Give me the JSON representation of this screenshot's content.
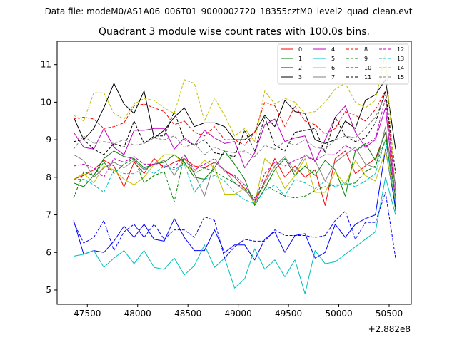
{
  "figure": {
    "suptitle": "Data file: modeM0/AS1A06_006T01_9000002720_18355cztM0_level2_quad_clean.evt",
    "title": "Quadrant 3 module wise count rates with 100.0s bins.",
    "offset_label": "+2.882e8"
  },
  "chart_data": {
    "type": "line",
    "title": "Quadrant 3 module wise count rates with 100.0s bins.",
    "xlabel": "",
    "ylabel": "",
    "x_offset": 288200000,
    "xlim": [
      47200,
      50720
    ],
    "ylim": [
      4.62,
      11.62
    ],
    "xticks": [
      47500,
      48000,
      48500,
      49000,
      49500,
      50000,
      50500
    ],
    "xtick_labels": [
      "47500",
      "48000",
      "48500",
      "49000",
      "49500",
      "50000",
      "50500"
    ],
    "yticks": [
      5,
      6,
      7,
      8,
      9,
      10,
      11
    ],
    "ytick_labels": [
      "5",
      "6",
      "7",
      "8",
      "9",
      "10",
      "11"
    ],
    "legend_location": "upper-right",
    "legend_columns": 4,
    "x": [
      47364,
      47464,
      47564,
      47664,
      47764,
      47864,
      47964,
      48064,
      48164,
      48264,
      48364,
      48464,
      48564,
      48664,
      48764,
      48864,
      48964,
      49064,
      49164,
      49264,
      49364,
      49464,
      49564,
      49664,
      49764,
      49864,
      49964,
      50064,
      50164,
      50264,
      50364,
      50464,
      50564
    ],
    "series": [
      {
        "name": "0",
        "color": "#ff0000",
        "dash": "solid",
        "values": [
          7.95,
          8.05,
          8.2,
          8.45,
          8.3,
          7.75,
          8.4,
          8.1,
          8.5,
          8.25,
          8.4,
          8.5,
          8.3,
          8.25,
          8.4,
          8.2,
          8.0,
          7.7,
          7.3,
          7.9,
          8.5,
          8.0,
          8.3,
          8.0,
          8.2,
          7.25,
          8.5,
          8.7,
          8.1,
          8.3,
          8.5,
          9.2,
          7.8
        ]
      },
      {
        "name": "1",
        "color": "#008000",
        "dash": "solid",
        "values": [
          7.85,
          7.75,
          8.05,
          8.5,
          8.7,
          8.55,
          8.5,
          8.25,
          8.35,
          8.4,
          8.6,
          8.4,
          8.0,
          7.95,
          8.25,
          8.7,
          8.35,
          7.95,
          7.25,
          7.7,
          8.2,
          8.5,
          8.05,
          8.3,
          8.05,
          8.45,
          8.2,
          7.5,
          8.7,
          8.9,
          8.45,
          9.2,
          7.1
        ]
      },
      {
        "name": "2",
        "color": "#0000ff",
        "dash": "solid",
        "values": [
          6.85,
          5.95,
          6.05,
          6.0,
          6.3,
          6.7,
          6.4,
          6.75,
          6.35,
          6.3,
          6.9,
          6.4,
          6.05,
          6.05,
          6.6,
          6.0,
          6.2,
          6.2,
          5.8,
          6.35,
          6.55,
          6.0,
          6.45,
          6.5,
          5.85,
          6.0,
          6.75,
          6.4,
          6.75,
          6.9,
          7.0,
          8.75,
          7.2
        ]
      },
      {
        "name": "3",
        "color": "#000000",
        "dash": "solid",
        "values": [
          9.6,
          9.0,
          9.3,
          9.85,
          10.5,
          9.95,
          9.7,
          10.3,
          9.05,
          9.25,
          9.6,
          9.85,
          9.35,
          9.45,
          9.45,
          9.35,
          9.0,
          9.0,
          9.2,
          9.65,
          9.35,
          10.05,
          9.75,
          9.7,
          9.0,
          8.9,
          9.0,
          9.5,
          9.3,
          10.05,
          10.2,
          10.6,
          8.75
        ]
      },
      {
        "name": "4",
        "color": "#c000c0",
        "dash": "solid",
        "values": [
          9.2,
          8.8,
          8.75,
          9.3,
          8.8,
          8.6,
          9.25,
          9.25,
          9.3,
          9.3,
          8.75,
          9.05,
          8.85,
          9.25,
          9.05,
          8.9,
          8.95,
          8.25,
          8.65,
          9.4,
          9.55,
          8.95,
          9.05,
          9.1,
          8.4,
          9.0,
          9.6,
          9.9,
          9.2,
          8.8,
          9.0,
          9.85,
          7.4
        ]
      },
      {
        "name": "5",
        "color": "#00bfbf",
        "dash": "solid",
        "values": [
          5.9,
          5.95,
          6.05,
          5.6,
          5.85,
          6.05,
          5.7,
          6.05,
          5.6,
          5.55,
          5.85,
          5.4,
          5.65,
          6.2,
          5.6,
          5.85,
          5.05,
          5.3,
          6.1,
          5.55,
          5.8,
          5.35,
          5.8,
          4.9,
          6.05,
          5.7,
          5.75,
          5.95,
          6.15,
          6.35,
          6.55,
          8.0,
          7.0
        ]
      },
      {
        "name": "6",
        "color": "#bfbf00",
        "dash": "solid",
        "values": [
          7.95,
          8.1,
          7.85,
          8.3,
          8.2,
          7.95,
          7.8,
          8.0,
          8.35,
          8.6,
          8.6,
          8.35,
          8.15,
          8.45,
          8.25,
          7.55,
          7.55,
          7.7,
          7.3,
          8.5,
          8.25,
          7.7,
          8.05,
          8.5,
          7.6,
          7.6,
          8.15,
          7.8,
          8.45,
          8.05,
          7.9,
          8.7,
          7.35
        ]
      },
      {
        "name": "7",
        "color": "#808080",
        "dash": "solid",
        "values": [
          8.6,
          8.45,
          8.0,
          8.25,
          8.4,
          8.25,
          8.45,
          8.2,
          8.35,
          8.45,
          8.05,
          8.5,
          8.1,
          7.5,
          8.4,
          8.2,
          7.85,
          7.65,
          7.4,
          7.85,
          8.3,
          8.55,
          8.15,
          8.6,
          8.45,
          7.9,
          8.4,
          8.6,
          8.8,
          8.35,
          8.25,
          9.35,
          7.4
        ]
      },
      {
        "name": "8",
        "color": "#ff0000",
        "dash": "dashed",
        "values": [
          9.55,
          9.6,
          9.55,
          9.3,
          9.35,
          9.45,
          9.9,
          9.95,
          9.85,
          9.75,
          9.4,
          9.5,
          9.2,
          9.1,
          9.35,
          9.0,
          9.0,
          8.85,
          9.2,
          10.0,
          9.9,
          9.35,
          9.9,
          9.5,
          9.4,
          9.15,
          9.3,
          9.75,
          9.65,
          9.5,
          9.8,
          10.3,
          7.7
        ]
      },
      {
        "name": "9",
        "color": "#008000",
        "dash": "dashed",
        "values": [
          7.45,
          8.15,
          8.05,
          8.4,
          8.1,
          8.35,
          8.5,
          7.85,
          8.05,
          8.15,
          7.35,
          8.6,
          8.1,
          8.25,
          8.15,
          8.0,
          7.85,
          7.7,
          7.45,
          7.8,
          7.65,
          7.5,
          7.45,
          7.5,
          7.65,
          7.75,
          7.8,
          7.8,
          7.85,
          8.15,
          8.3,
          9.0,
          7.5
        ]
      },
      {
        "name": "10",
        "color": "#0000ff",
        "dash": "dashed",
        "values": [
          6.8,
          6.25,
          6.4,
          6.85,
          6.05,
          6.55,
          6.75,
          6.4,
          6.75,
          6.35,
          6.6,
          6.6,
          6.4,
          6.95,
          6.85,
          5.85,
          6.15,
          6.35,
          6.3,
          6.3,
          6.6,
          6.45,
          6.45,
          6.45,
          6.4,
          6.45,
          6.85,
          7.1,
          6.35,
          6.8,
          6.8,
          7.6,
          5.85
        ]
      },
      {
        "name": "11",
        "color": "#000000",
        "dash": "dashed",
        "values": [
          8.95,
          9.0,
          8.75,
          8.6,
          8.9,
          8.8,
          9.5,
          8.9,
          9.1,
          9.1,
          9.75,
          9.0,
          8.85,
          9.0,
          8.65,
          8.6,
          8.55,
          9.25,
          8.7,
          9.6,
          8.85,
          8.7,
          9.2,
          9.25,
          9.3,
          8.65,
          9.6,
          9.1,
          8.95,
          9.05,
          9.45,
          10.3,
          8.1
        ]
      },
      {
        "name": "12",
        "color": "#c000c0",
        "dash": "dashed",
        "values": [
          8.3,
          8.35,
          8.25,
          8.0,
          8.5,
          8.4,
          8.55,
          8.35,
          8.35,
          8.3,
          8.25,
          8.6,
          8.2,
          8.35,
          8.5,
          8.15,
          8.05,
          7.8,
          7.35,
          8.1,
          8.4,
          8.3,
          8.45,
          8.55,
          8.45,
          8.6,
          8.6,
          8.85,
          8.7,
          8.85,
          9.05,
          10.1,
          7.6
        ]
      },
      {
        "name": "13",
        "color": "#00bfbf",
        "dash": "dashed",
        "values": [
          7.95,
          7.95,
          7.8,
          7.6,
          8.2,
          8.1,
          8.1,
          8.25,
          8.1,
          8.3,
          8.2,
          8.35,
          7.6,
          7.95,
          8.05,
          7.9,
          7.6,
          7.4,
          7.3,
          7.65,
          7.8,
          7.5,
          7.95,
          7.85,
          7.7,
          7.9,
          7.75,
          7.85,
          7.75,
          7.9,
          8.1,
          9.0,
          7.3
        ]
      },
      {
        "name": "14",
        "color": "#bfbf00",
        "dash": "dashed",
        "values": [
          9.65,
          9.5,
          10.25,
          10.25,
          9.7,
          9.55,
          9.95,
          10.1,
          10.05,
          9.85,
          9.7,
          10.6,
          10.5,
          9.5,
          10.1,
          9.65,
          9.1,
          9.3,
          8.95,
          10.3,
          9.95,
          10.1,
          10.0,
          9.7,
          9.75,
          10.0,
          10.35,
          10.5,
          10.0,
          9.85,
          10.05,
          11.3,
          7.55
        ]
      },
      {
        "name": "15",
        "color": "#808080",
        "dash": "dashed",
        "values": [
          8.75,
          9.1,
          8.9,
          8.95,
          8.9,
          9.0,
          8.85,
          8.9,
          9.05,
          9.0,
          9.1,
          8.8,
          8.9,
          8.6,
          8.8,
          8.7,
          8.65,
          8.7,
          8.55,
          8.85,
          8.75,
          8.95,
          8.85,
          9.0,
          8.8,
          8.75,
          9.0,
          9.1,
          9.05,
          9.3,
          9.6,
          10.2,
          7.7
        ]
      }
    ]
  }
}
